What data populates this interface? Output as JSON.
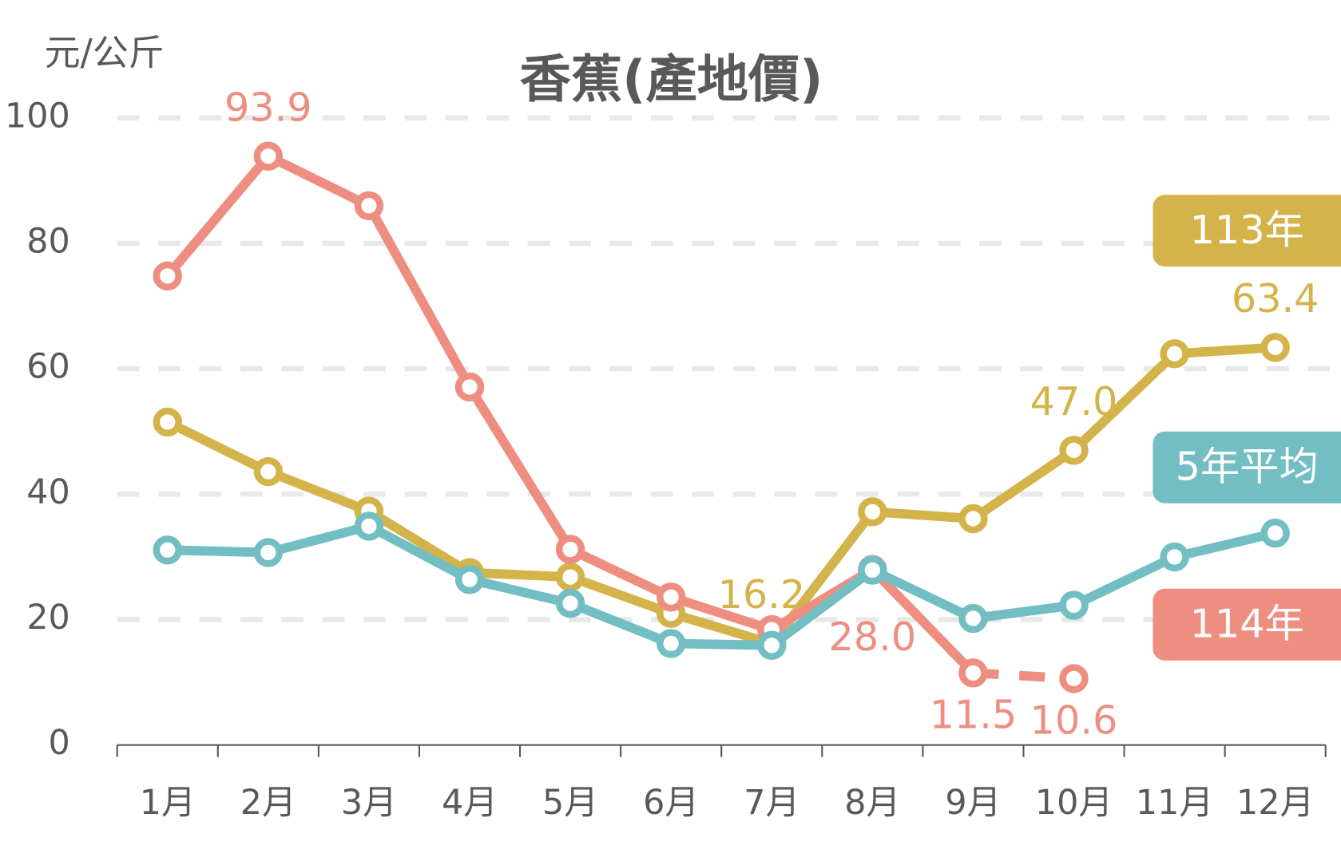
{
  "chart_data": {
    "type": "line",
    "title": "香蕉(產地價)",
    "y_label": "元/公斤",
    "categories": [
      "1月",
      "2月",
      "3月",
      "4月",
      "5月",
      "6月",
      "7月",
      "8月",
      "9月",
      "10月",
      "11月",
      "12月"
    ],
    "ylim": [
      0,
      100
    ],
    "yticks": [
      0,
      20,
      40,
      60,
      80,
      100
    ],
    "grid": true,
    "legend": "right",
    "series": [
      {
        "name": "113年",
        "color": "#D4B44A",
        "values": [
          51.5,
          43.6,
          37.3,
          27.5,
          26.8,
          21.0,
          16.2,
          37.2,
          36.1,
          47.0,
          62.4,
          63.4
        ],
        "value_labels": [
          null,
          null,
          null,
          null,
          null,
          null,
          "16.2",
          null,
          null,
          "47.0",
          null,
          "63.4"
        ]
      },
      {
        "name": "114年",
        "color": "#EE8E80",
        "values": [
          74.8,
          93.9,
          86.0,
          57.1,
          31.2,
          23.6,
          18.4,
          28.0,
          11.5,
          10.6,
          null,
          null
        ],
        "value_labels": [
          null,
          "93.9",
          null,
          null,
          null,
          null,
          null,
          "28.0",
          "11.5",
          "10.6",
          null,
          null
        ],
        "dashed_from_index": 8
      },
      {
        "name": "5年平均",
        "color": "#72BEC3",
        "values": [
          31.1,
          30.7,
          34.9,
          26.4,
          22.6,
          16.2,
          15.9,
          27.9,
          20.2,
          22.3,
          30.0,
          33.8
        ]
      }
    ]
  }
}
